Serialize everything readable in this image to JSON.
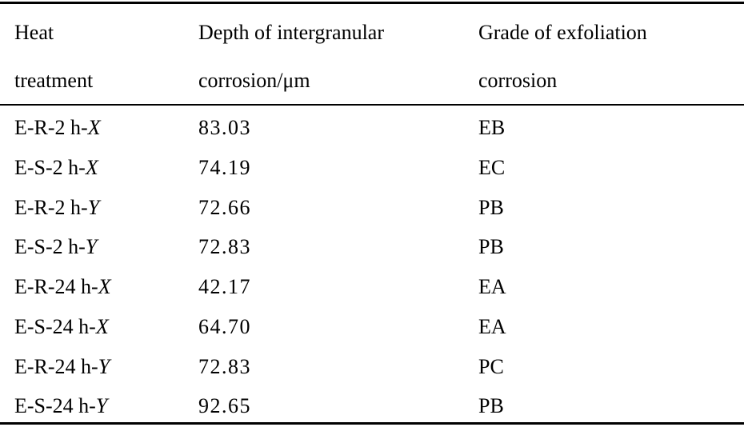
{
  "columns": [
    {
      "line1": "Heat",
      "line2": "treatment"
    },
    {
      "line1": "Depth of intergranular",
      "line2": "corrosion/μm"
    },
    {
      "line1": "Grade of exfoliation",
      "line2": "corrosion"
    }
  ],
  "rows": [
    {
      "treatment_prefix": "E-R-2 h-",
      "treatment_axis": "X",
      "depth": "83.03",
      "grade": "EB"
    },
    {
      "treatment_prefix": "E-S-2 h-",
      "treatment_axis": "X",
      "depth": "74.19",
      "grade": "EC"
    },
    {
      "treatment_prefix": "E-R-2 h-",
      "treatment_axis": "Y",
      "depth": "72.66",
      "grade": "PB"
    },
    {
      "treatment_prefix": "E-S-2 h-",
      "treatment_axis": "Y",
      "depth": "72.83",
      "grade": "PB"
    },
    {
      "treatment_prefix": "E-R-24 h-",
      "treatment_axis": "X",
      "depth": "42.17",
      "grade": "EA"
    },
    {
      "treatment_prefix": "E-S-24 h-",
      "treatment_axis": "X",
      "depth": "64.70",
      "grade": "EA"
    },
    {
      "treatment_prefix": "E-R-24 h-",
      "treatment_axis": "Y",
      "depth": "72.83",
      "grade": "PC"
    },
    {
      "treatment_prefix": "E-S-24 h-",
      "treatment_axis": "Y",
      "depth": "92.65",
      "grade": "PB"
    }
  ]
}
